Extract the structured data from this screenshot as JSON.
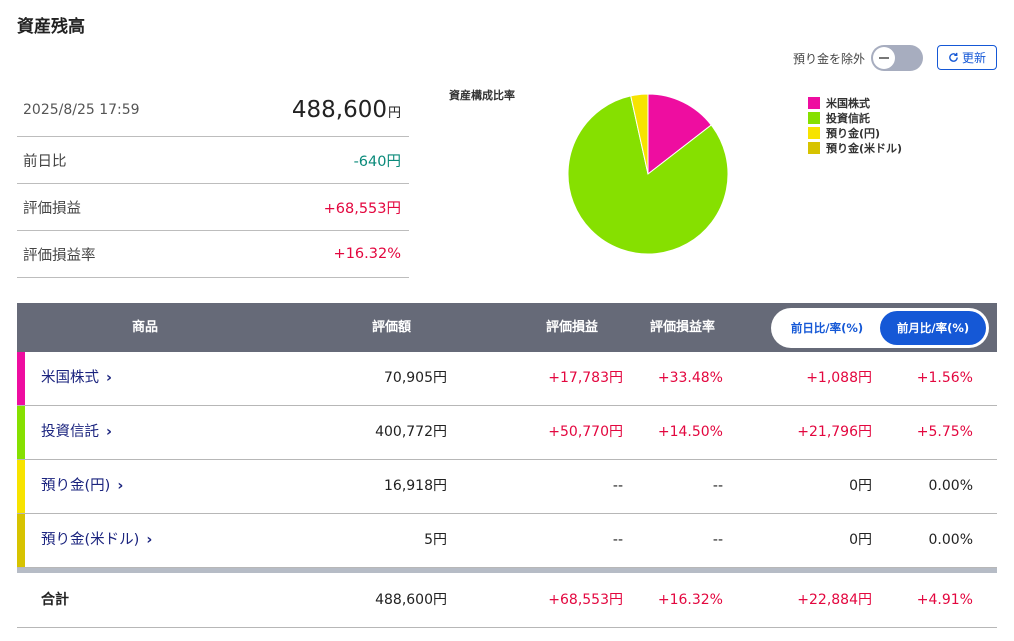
{
  "page": {
    "title": "資産残高"
  },
  "summary": {
    "datetime": "2025/8/25 17:59",
    "total_value": "488,600",
    "total_unit": "円",
    "rows": [
      {
        "label": "前日比",
        "value": "-640円",
        "tone": "green"
      },
      {
        "label": "評価損益",
        "value": "+68,553円",
        "tone": "red"
      },
      {
        "label": "評価損益率",
        "value": "+16.32%",
        "tone": "red"
      }
    ]
  },
  "controls": {
    "exclude_deposit_label": "預り金を除外",
    "exclude_deposit_on": false,
    "refresh_label": "更新"
  },
  "chart_data": {
    "type": "pie",
    "title": "資産構成比率",
    "legend_position": "right",
    "slices": [
      {
        "name": "米国株式",
        "value": 70905,
        "color": "#ee0da0"
      },
      {
        "name": "投資信託",
        "value": 400772,
        "color": "#86e000"
      },
      {
        "name": "預り金(円)",
        "value": 16918,
        "color": "#f7e300"
      },
      {
        "name": "預り金(米ドル)",
        "value": 5,
        "color": "#d7c300"
      }
    ]
  },
  "table": {
    "headers": {
      "product": "商品",
      "value": "評価額",
      "pl": "評価損益",
      "pl_rate": "評価損益率"
    },
    "period_toggle": [
      {
        "label": "前日比/率(%)",
        "active": false
      },
      {
        "label": "前月比/率(%)",
        "active": true
      }
    ],
    "rows": [
      {
        "name": "米国株式",
        "color": "#ee0da0",
        "value": "70,905円",
        "pl": "+17,783円",
        "pl_rate": "+33.48%",
        "change": "+1,088円",
        "change_rate": "+1.56%"
      },
      {
        "name": "投資信託",
        "color": "#86e000",
        "value": "400,772円",
        "pl": "+50,770円",
        "pl_rate": "+14.50%",
        "change": "+21,796円",
        "change_rate": "+5.75%"
      },
      {
        "name": "預り金(円)",
        "color": "#f7e300",
        "value": "16,918円",
        "pl": "--",
        "pl_rate": "--",
        "change": "0円",
        "change_rate": "0.00%"
      },
      {
        "name": "預り金(米ドル)",
        "color": "#d7c300",
        "value": "5円",
        "pl": "--",
        "pl_rate": "--",
        "change": "0円",
        "change_rate": "0.00%"
      }
    ],
    "total": {
      "label": "合計",
      "value": "488,600円",
      "pl": "+68,553円",
      "pl_rate": "+16.32%",
      "change": "+22,884円",
      "change_rate": "+4.91%"
    }
  }
}
